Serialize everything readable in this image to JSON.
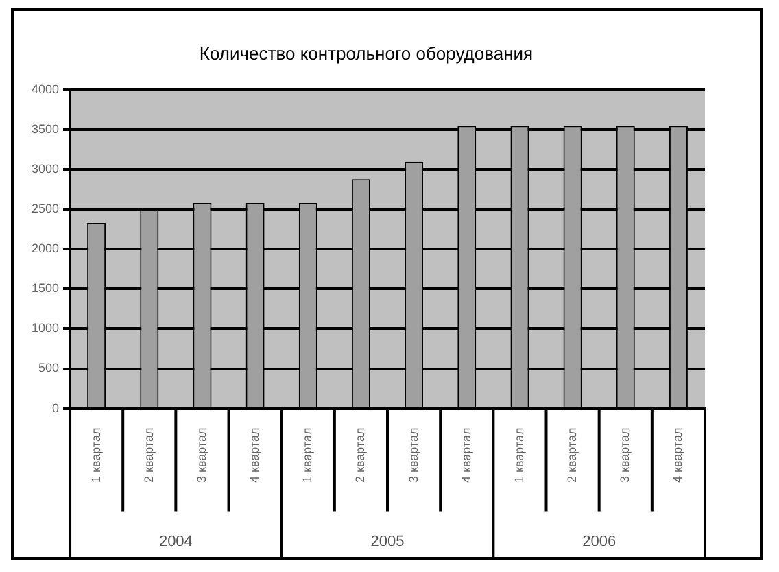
{
  "chart_data": {
    "type": "bar",
    "title": "Количество контрольного оборудования",
    "categories": [
      "1 квартал",
      "2 квартал",
      "3 квартал",
      "4 квартал",
      "1 квартал",
      "2 квартал",
      "3 квартал",
      "4 квартал",
      "1 квартал",
      "2 квартал",
      "3 квартал",
      "4 квартал"
    ],
    "values": [
      2330,
      2500,
      2580,
      2580,
      2580,
      2880,
      3100,
      3550,
      3550,
      3550,
      3550,
      3550
    ],
    "color": "#a0a0a0",
    "annotations": [
      "2004",
      "2005",
      "2006"
    ],
    "ylim": [
      0,
      4000
    ],
    "yticks": [
      0,
      500,
      1000,
      1500,
      2000,
      2500,
      3000,
      3500,
      4000
    ],
    "grid": "y",
    "legend": false
  }
}
